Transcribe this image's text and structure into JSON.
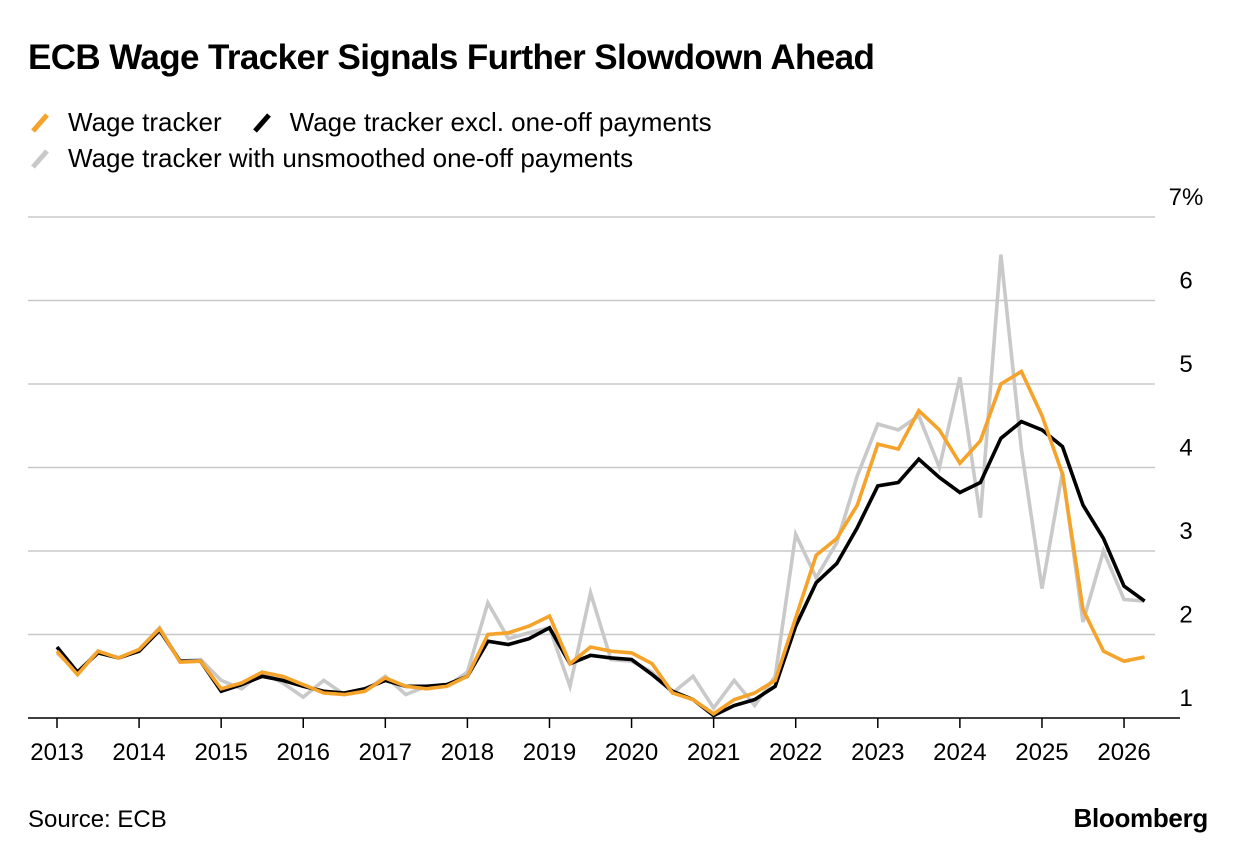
{
  "title": "ECB Wage Tracker Signals Further Slowdown Ahead",
  "legend": [
    {
      "label": "Wage tracker",
      "color": "#f5a32b"
    },
    {
      "label": "Wage tracker excl. one-off payments",
      "color": "#000000"
    },
    {
      "label": "Wage tracker with unsmoothed one-off payments",
      "color": "#c9c9c9"
    }
  ],
  "footer": {
    "source": "Source: ECB",
    "brand": "Bloomberg"
  },
  "chart_data": {
    "type": "line",
    "title": "ECB Wage Tracker Signals Further Slowdown Ahead",
    "xlabel": "",
    "ylabel": "",
    "ylim": [
      1,
      7
    ],
    "xlim": [
      2013,
      2026.5
    ],
    "y_ticks": [
      1,
      2,
      3,
      4,
      5,
      6,
      7
    ],
    "y_tick_labels": [
      "1",
      "2",
      "3",
      "4",
      "5",
      "6",
      "7%"
    ],
    "x_ticks": [
      2013,
      2014,
      2015,
      2016,
      2017,
      2018,
      2019,
      2020,
      2021,
      2022,
      2023,
      2024,
      2025,
      2026
    ],
    "x_tick_labels": [
      "2013",
      "2014",
      "2015",
      "2016",
      "2017",
      "2018",
      "2019",
      "2020",
      "2021",
      "2022",
      "2023",
      "2024",
      "2025",
      "2026"
    ],
    "grid": "horizontal",
    "x": [
      2013,
      2013.25,
      2013.5,
      2013.75,
      2014,
      2014.25,
      2014.5,
      2014.75,
      2015,
      2015.25,
      2015.5,
      2015.75,
      2016,
      2016.25,
      2016.5,
      2016.75,
      2017,
      2017.25,
      2017.5,
      2017.75,
      2018,
      2018.25,
      2018.5,
      2018.75,
      2019,
      2019.25,
      2019.5,
      2019.75,
      2020,
      2020.25,
      2020.5,
      2020.75,
      2021,
      2021.25,
      2021.5,
      2021.75,
      2022,
      2022.25,
      2022.5,
      2022.75,
      2023,
      2023.25,
      2023.5,
      2023.75,
      2024,
      2024.25,
      2024.5,
      2024.75,
      2025,
      2025.25,
      2025.5,
      2025.75,
      2026,
      2026.25
    ],
    "series": [
      {
        "name": "Wage tracker with unsmoothed one-off payments",
        "color": "#c9c9c9",
        "values": [
          1.78,
          1.55,
          1.8,
          1.72,
          1.82,
          2.08,
          1.68,
          1.7,
          1.45,
          1.35,
          1.55,
          1.42,
          1.25,
          1.45,
          1.28,
          1.32,
          1.5,
          1.28,
          1.38,
          1.38,
          1.55,
          2.38,
          1.95,
          2.02,
          2.08,
          1.38,
          2.5,
          1.7,
          1.68,
          1.55,
          1.3,
          1.5,
          1.12,
          1.45,
          1.15,
          1.5,
          3.2,
          2.68,
          3.1,
          3.9,
          4.52,
          4.45,
          4.62,
          4.0,
          5.08,
          3.4,
          6.55,
          4.22,
          2.55,
          3.95,
          2.15,
          3.0,
          2.42,
          2.4
        ]
      },
      {
        "name": "Wage tracker excl. one-off payments",
        "color": "#000000",
        "values": [
          1.85,
          1.55,
          1.78,
          1.72,
          1.8,
          2.05,
          1.68,
          1.68,
          1.32,
          1.4,
          1.5,
          1.45,
          1.38,
          1.32,
          1.3,
          1.35,
          1.45,
          1.38,
          1.38,
          1.4,
          1.5,
          1.92,
          1.88,
          1.95,
          2.08,
          1.65,
          1.75,
          1.72,
          1.7,
          1.52,
          1.32,
          1.22,
          1.03,
          1.15,
          1.22,
          1.38,
          2.1,
          2.62,
          2.85,
          3.28,
          3.78,
          3.82,
          4.1,
          3.88,
          3.7,
          3.82,
          4.35,
          4.55,
          4.45,
          4.25,
          3.55,
          3.15,
          2.58,
          2.4
        ]
      },
      {
        "name": "Wage tracker",
        "color": "#f5a32b",
        "values": [
          1.8,
          1.52,
          1.8,
          1.72,
          1.82,
          2.07,
          1.67,
          1.68,
          1.35,
          1.42,
          1.55,
          1.5,
          1.4,
          1.3,
          1.28,
          1.32,
          1.48,
          1.38,
          1.35,
          1.38,
          1.5,
          2.0,
          2.02,
          2.1,
          2.22,
          1.65,
          1.85,
          1.8,
          1.78,
          1.65,
          1.3,
          1.22,
          1.05,
          1.22,
          1.3,
          1.45,
          2.2,
          2.95,
          3.15,
          3.55,
          4.28,
          4.22,
          4.68,
          4.45,
          4.05,
          4.32,
          5.0,
          5.15,
          4.62,
          3.92,
          2.3,
          1.8,
          1.68,
          1.73
        ]
      }
    ]
  }
}
